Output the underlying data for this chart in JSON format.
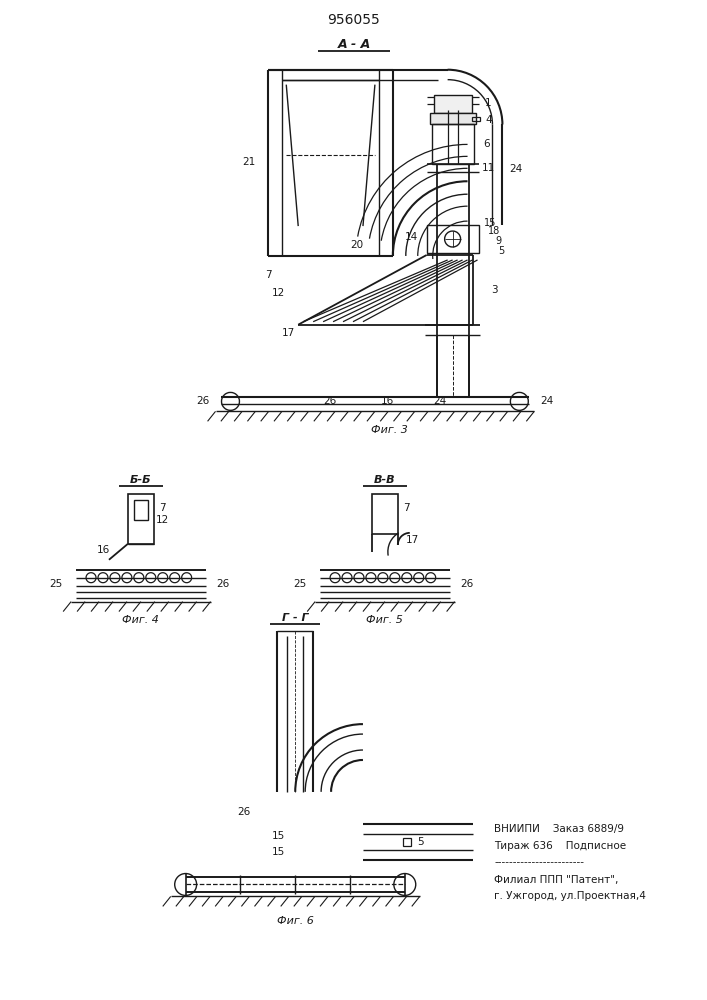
{
  "title": "956055",
  "bg_color": "#ffffff",
  "line_color": "#1a1a1a",
  "fig_width": 7.07,
  "fig_height": 10.0,
  "dpi": 100,
  "section_AA": "A - A",
  "section_BB": "Б-Б",
  "section_VV": "В-В",
  "section_GG": "Г - Г",
  "fig3_cap": "Фиг. 3",
  "fig4_cap": "Фиг. 4",
  "fig5_cap": "Фиг. 5",
  "fig6_cap": "Фиг. 6",
  "footer": [
    "ВНИИПИ    Заказ 6889/9",
    "Тираж 636    Подписное",
    "------------------------",
    "Филиал ППП \"Патент\",",
    "г. Ужгород, ул.Проектная,4"
  ]
}
